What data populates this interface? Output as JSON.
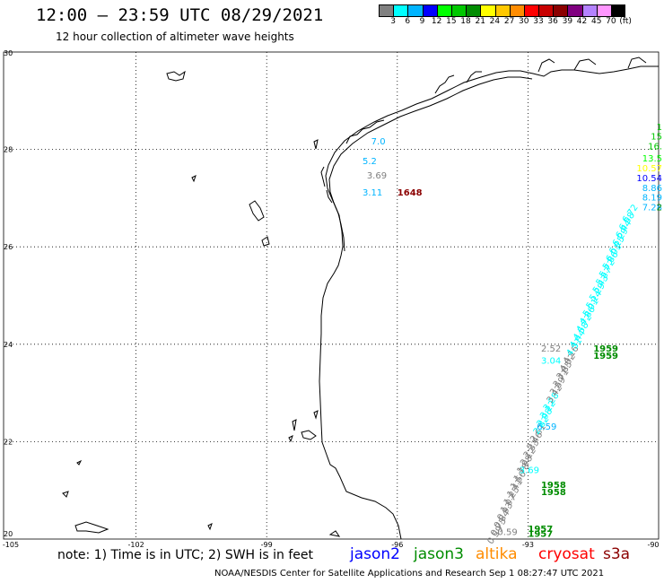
{
  "header": {
    "title": "12:00 – 23:59 UTC 08/29/2021",
    "subtitle": "12 hour collection of altimeter wave heights"
  },
  "legend": {
    "swatches": [
      {
        "color": "#808080",
        "label": "3"
      },
      {
        "color": "#00ffff",
        "label": "6"
      },
      {
        "color": "#00b4ff",
        "label": "9"
      },
      {
        "color": "#0000ff",
        "label": "12"
      },
      {
        "color": "#00ff00",
        "label": "15"
      },
      {
        "color": "#00c800",
        "label": "18"
      },
      {
        "color": "#008c00",
        "label": "21"
      },
      {
        "color": "#ffff00",
        "label": "24"
      },
      {
        "color": "#ffc800",
        "label": "27"
      },
      {
        "color": "#ff8c00",
        "label": "30"
      },
      {
        "color": "#ff0000",
        "label": "33"
      },
      {
        "color": "#c80000",
        "label": "36"
      },
      {
        "color": "#8b0000",
        "label": "39"
      },
      {
        "color": "#800080",
        "label": "42"
      },
      {
        "color": "#b482ff",
        "label": "45"
      },
      {
        "color": "#ff96ff",
        "label": "70"
      },
      {
        "color": "#000000",
        "label": "(ft)"
      }
    ]
  },
  "map": {
    "lon_ticks": [
      "-105",
      "-102",
      "-99",
      "-96",
      "-93",
      "-90"
    ],
    "lat_ticks": [
      "30",
      "28",
      "26",
      "24",
      "22",
      "20"
    ],
    "labels": [
      {
        "text": "7.0",
        "color": "#00b4ff",
        "lon": -96.6,
        "lat": 28.1
      },
      {
        "text": "5.2",
        "color": "#00b4ff",
        "lon": -96.8,
        "lat": 27.7
      },
      {
        "text": "3.69",
        "color": "#808080",
        "lon": -96.7,
        "lat": 27.4
      },
      {
        "text": "3.11",
        "color": "#00b4ff",
        "lon": -96.8,
        "lat": 27.05
      },
      {
        "text": "1648",
        "color": "#8b0000",
        "lon": -96.0,
        "lat": 27.05
      },
      {
        "text": "1",
        "color": "#00c800",
        "lon": -90.1,
        "lat": 28.4
      },
      {
        "text": "15",
        "color": "#00c800",
        "lon": -90.1,
        "lat": 28.2
      },
      {
        "text": "16.",
        "color": "#00c800",
        "lon": -90.2,
        "lat": 28.0
      },
      {
        "text": "13.5",
        "color": "#00ff00",
        "lon": -90.2,
        "lat": 27.75
      },
      {
        "text": "10.57",
        "color": "#ffff00",
        "lon": -90.2,
        "lat": 27.55
      },
      {
        "text": "10.54",
        "color": "#0000ff",
        "lon": -90.2,
        "lat": 27.35
      },
      {
        "text": "8.86",
        "color": "#00b4ff",
        "lon": -90.4,
        "lat": 27.15
      },
      {
        "text": "8.19",
        "color": "#00b4ff",
        "lon": -90.45,
        "lat": 26.95
      },
      {
        "text": "7.28",
        "color": "#00b4ff",
        "lon": -90.6,
        "lat": 26.75
      },
      {
        "text": "2",
        "color": "#008c00",
        "lon": -90.1,
        "lat": 26.75
      },
      {
        "text": "2.52",
        "color": "#808080",
        "lon": -92.7,
        "lat": 23.85
      },
      {
        "text": "1959",
        "color": "#008c00",
        "lon": -91.5,
        "lat": 23.85
      },
      {
        "text": "1959",
        "color": "#008c00",
        "lon": -91.5,
        "lat": 23.7
      },
      {
        "text": "3.04",
        "color": "#00ffff",
        "lon": -92.7,
        "lat": 23.6
      },
      {
        "text": "6.59",
        "color": "#00b4ff",
        "lon": -92.8,
        "lat": 22.25
      },
      {
        "text": "3.69",
        "color": "#00ffff",
        "lon": -93.2,
        "lat": 21.35
      },
      {
        "text": "1958",
        "color": "#008c00",
        "lon": -92.7,
        "lat": 21.05
      },
      {
        "text": "1958",
        "color": "#008c00",
        "lon": -92.7,
        "lat": 20.9
      },
      {
        "text": "0.59",
        "color": "#808080",
        "lon": -93.7,
        "lat": 20.08
      },
      {
        "text": "1957",
        "color": "#008c00",
        "lon": -93.0,
        "lat": 20.15
      },
      {
        "text": "1957",
        "color": "#008c00",
        "lon": -93.0,
        "lat": 20.05
      }
    ],
    "track": {
      "start": {
        "lon": -93.7,
        "lat": 20.05
      },
      "end": {
        "lon": -90.6,
        "lat": 26.65
      },
      "count": 42,
      "values": [
        "0.59",
        "0.75",
        "0.84",
        "0.93",
        "1.07",
        "1.25",
        "1.41",
        "1.56",
        "1.78",
        "1.98",
        "2.12",
        "2.33",
        "2.46",
        "2.61",
        "2.82",
        "2.98",
        "3.12",
        "3.28",
        "3.42",
        "3.59",
        "3.71",
        "3.85",
        "4.02",
        "4.16",
        "4.31",
        "4.44",
        "4.58",
        "4.72",
        "4.86",
        "5.01",
        "5.14",
        "5.29",
        "5.43",
        "5.57",
        "5.72",
        "5.86",
        "6.01",
        "6.15",
        "6.29",
        "6.44",
        "6.58",
        "6.72"
      ],
      "colors": [
        "#808080",
        "#808080",
        "#808080",
        "#808080",
        "#808080",
        "#808080",
        "#808080",
        "#808080",
        "#808080",
        "#808080",
        "#808080",
        "#808080",
        "#808080",
        "#808080",
        "#00ffff",
        "#00ffff",
        "#00ffff",
        "#00ffff",
        "#808080",
        "#808080",
        "#808080",
        "#808080",
        "#808080",
        "#808080",
        "#00ffff",
        "#00ffff",
        "#00ffff",
        "#00ffff",
        "#00ffff",
        "#00ffff",
        "#00ffff",
        "#00ffff",
        "#00ffff",
        "#00ffff",
        "#00ffff",
        "#00ffff",
        "#00ffff",
        "#00ffff",
        "#00ffff",
        "#00ffff",
        "#00ffff",
        "#00ffff"
      ]
    }
  },
  "footer": {
    "note": "note:  1) Time is in UTC;  2) SWH is in feet",
    "satellites": [
      {
        "name": "jason2",
        "color": "#0000ff"
      },
      {
        "name": "jason3",
        "color": "#008c00"
      },
      {
        "name": "altika",
        "color": "#ff8c00"
      },
      {
        "name": "cryosat",
        "color": "#ff0000"
      },
      {
        "name": "s3a",
        "color": "#8b0000"
      }
    ],
    "credit": "NOAA/NESDIS Center for Satellite Applications and Research    Sep  1 08:27:47 UTC 2021"
  }
}
